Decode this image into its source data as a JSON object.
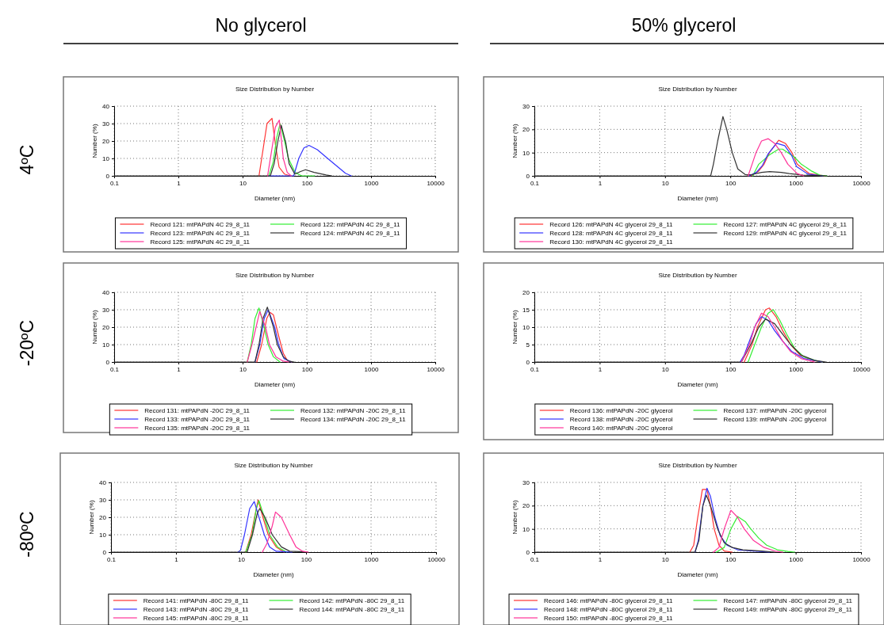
{
  "chart_data": [
    {
      "type": "line",
      "title": "Size Distribution by Number",
      "xlabel": "Diameter (nm)",
      "ylabel": "Number (%)",
      "annotations": [
        "No glycerol",
        "4ºC"
      ],
      "log": "x",
      "grid": true,
      "legend": "bottom",
      "line_style": "solid",
      "xlim": [
        0.1,
        10000
      ],
      "ylim": [
        0,
        40
      ],
      "xticks": [
        0.1,
        1,
        10,
        100,
        1000,
        10000
      ],
      "yticks": [
        0,
        10,
        20,
        30,
        40
      ],
      "series": [
        {
          "name": "Record 121: mtPAPdN 4C 29_8_11",
          "color": "#ff3333",
          "x": [
            18,
            24,
            28.7,
            32.4,
            37,
            45,
            55
          ],
          "values": [
            0,
            30,
            33,
            18,
            5,
            1,
            0
          ]
        },
        {
          "name": "Record 122: mtPAPdN 4C 29_8_11",
          "color": "#33ee33",
          "x": [
            25.6,
            30,
            34,
            38.4,
            45,
            51.7,
            65.5,
            83,
            132
          ],
          "values": [
            0,
            8,
            22,
            30,
            20,
            10,
            2,
            0,
            0
          ]
        },
        {
          "name": "Record 123: mtPAPdN 4C 29_8_11",
          "color": "#3333ff",
          "x": [
            25.6,
            62.5,
            75,
            90,
            108,
            146,
            211,
            307,
            400,
            492
          ],
          "values": [
            0,
            0,
            10,
            16,
            17.5,
            15,
            10,
            5,
            1.5,
            0
          ]
        },
        {
          "name": "Record 124: mtPAPdN 4C 29_8_11",
          "color": "#333333",
          "x": [
            0.1,
            27,
            31,
            35.5,
            40,
            47,
            53,
            65,
            80,
            95.5,
            130,
            200,
            245
          ],
          "values": [
            0,
            0,
            7,
            20,
            29,
            19,
            7,
            1,
            2.5,
            3.5,
            2,
            0.5,
            0
          ]
        },
        {
          "name": "Record 125: mtPAPdN 4C 29_8_11",
          "color": "#ff3399",
          "x": [
            24.5,
            32.4,
            37.3,
            43,
            49.5,
            57
          ],
          "values": [
            0,
            28,
            32,
            10,
            2,
            0
          ]
        }
      ]
    },
    {
      "type": "line",
      "title": "Size Distribution by Number",
      "xlabel": "Diameter (nm)",
      "ylabel": "Number (%)",
      "annotations": [
        "50% glycerol"
      ],
      "log": "x",
      "grid": true,
      "legend": "bottom",
      "line_style": "solid",
      "xlim": [
        0.1,
        10000
      ],
      "ylim": [
        0,
        30
      ],
      "xticks": [
        0.1,
        1,
        10,
        100,
        1000,
        10000
      ],
      "yticks": [
        0,
        10,
        20,
        30
      ],
      "series": [
        {
          "name": "Record 126: mtPAPdN 4C glycerol 29_8_11",
          "color": "#ff3333",
          "x": [
            205,
            270,
            328,
            396,
            549,
            695,
            876,
            1055,
            1609,
            2800
          ],
          "values": [
            0,
            2,
            5,
            10,
            15.3,
            14,
            10,
            5,
            1,
            0
          ]
        },
        {
          "name": "Record 127: mtPAPdN 4C glycerol 29_8_11",
          "color": "#33ee33",
          "x": [
            220,
            272,
            396,
            550,
            630,
            960,
            1220,
            1770,
            2330,
            3000
          ],
          "values": [
            0,
            5,
            9,
            11.5,
            11.5,
            8,
            5,
            2,
            0.3,
            0
          ]
        },
        {
          "name": "Record 128: mtPAPdN 4C glycerol 29_8_11",
          "color": "#3333ff",
          "x": [
            195,
            250,
            310,
            380,
            510,
            680,
            860,
            1030,
            1550,
            2600
          ],
          "values": [
            0,
            1.5,
            4.5,
            9.5,
            14,
            13,
            9,
            4,
            0.7,
            0
          ]
        },
        {
          "name": "Record 129: mtPAPdN 4C glycerol 29_8_11",
          "color": "#333333",
          "x": [
            0.1,
            50,
            55,
            64,
            77,
            88,
            107,
            130,
            170,
            210,
            300,
            400,
            600,
            800,
            1300,
            3000
          ],
          "values": [
            0,
            0,
            5,
            15,
            25.5,
            20,
            10,
            3,
            0.5,
            0.5,
            1.5,
            1.8,
            1.5,
            1,
            0.3,
            0
          ]
        },
        {
          "name": "Record 130: mtPAPdN 4C glycerol 29_8_11",
          "color": "#ff3399",
          "x": [
            187,
            215,
            247,
            300,
            378,
            476,
            600,
            760,
            1055,
            1330
          ],
          "values": [
            0,
            5,
            10,
            15,
            16,
            14,
            10,
            5,
            1,
            0
          ]
        }
      ]
    },
    {
      "type": "line",
      "title": "Size Distribution by Number",
      "xlabel": "Diameter (nm)",
      "ylabel": "Number (%)",
      "annotations": [
        "-20ºC"
      ],
      "log": "x",
      "grid": true,
      "legend": "bottom",
      "line_style": "solid",
      "xlim": [
        0.1,
        10000
      ],
      "ylim": [
        0,
        40
      ],
      "xticks": [
        0.1,
        1,
        10,
        100,
        1000,
        10000
      ],
      "yticks": [
        0,
        10,
        20,
        30,
        40
      ],
      "series": [
        {
          "name": "Record 131: mtPAPdN -20C 29_8_11",
          "color": "#ff3333",
          "x": [
            16.6,
            19.8,
            23.8,
            26.6,
            30.2,
            36.4,
            43,
            49.5,
            58
          ],
          "values": [
            0,
            10,
            25,
            28.5,
            27,
            15,
            5,
            1,
            0
          ]
        },
        {
          "name": "Record 132: mtPAPdN -20C 29_8_11",
          "color": "#33ee33",
          "x": [
            11.8,
            13.6,
            15.6,
            18,
            21.7,
            25,
            30.2,
            38.2
          ],
          "values": [
            0,
            10,
            25,
            31,
            20,
            10,
            3,
            0
          ]
        },
        {
          "name": "Record 133: mtPAPdN -20C 29_8_11",
          "color": "#3333ff",
          "x": [
            15.6,
            18.5,
            21.7,
            25,
            31.6,
            36.4,
            44,
            58
          ],
          "values": [
            0,
            10,
            25,
            30,
            20,
            10,
            2,
            0
          ]
        },
        {
          "name": "Record 134: mtPAPdN -20C 29_8_11",
          "color": "#333333",
          "x": [
            0.1,
            15.6,
            18,
            20.8,
            24.3,
            30.2,
            34.7,
            43,
            52,
            63.8
          ],
          "values": [
            0,
            0,
            10,
            25,
            31.5,
            20,
            10,
            3,
            0.5,
            0
          ]
        },
        {
          "name": "Record 135: mtPAPdN -20C 29_8_11",
          "color": "#ff3399",
          "x": [
            11.8,
            14,
            18.5,
            22.8,
            26.2,
            33,
            43,
            52
          ],
          "values": [
            0,
            10,
            29,
            20,
            10,
            3,
            0.5,
            0
          ]
        }
      ]
    },
    {
      "type": "line",
      "title": "Size Distribution by Number",
      "xlabel": "Diameter (nm)",
      "ylabel": "Number (%)",
      "log": "x",
      "grid": true,
      "legend": "bottom",
      "line_style": "solid",
      "xlim": [
        0.1,
        10000
      ],
      "ylim": [
        0,
        20
      ],
      "xticks": [
        0.1,
        1,
        10,
        100,
        1000,
        10000
      ],
      "yticks": [
        0,
        5,
        10,
        15,
        20
      ],
      "series": [
        {
          "name": "Record 136: mtPAPdN -20C glycerol",
          "color": "#ff3333",
          "x": [
            163,
            215,
            260,
            345,
            396,
            500,
            632,
            837,
            1160,
            1770,
            2570
          ],
          "values": [
            0,
            5,
            10,
            15,
            15.5,
            13,
            9,
            5,
            2,
            0.5,
            0
          ]
        },
        {
          "name": "Record 137: mtPAPdN -20C glycerol",
          "color": "#33ee33",
          "x": [
            187,
            236,
            299,
            378,
            455,
            570,
            727,
            960,
            1330,
            2100,
            2570
          ],
          "values": [
            0,
            5,
            10,
            14,
            15,
            12,
            8,
            4,
            1.5,
            0.3,
            0
          ]
        },
        {
          "name": "Record 138: mtPAPdN -20C glycerol",
          "color": "#3333ff",
          "x": [
            141,
            163,
            205,
            248,
            299,
            378,
            476,
            632,
            876,
            1330,
            2570
          ],
          "values": [
            0,
            2,
            7,
            11,
            13,
            12,
            9,
            6,
            3,
            1,
            0
          ]
        },
        {
          "name": "Record 139: mtPAPdN -20C glycerol",
          "color": "#333333",
          "x": [
            0.1,
            148,
            205,
            272,
            345,
            476,
            632,
            837,
            1210,
            1930,
            2900
          ],
          "values": [
            0,
            0,
            5,
            10,
            12.3,
            11,
            8,
            5,
            2,
            0.5,
            0
          ]
        },
        {
          "name": "Record 140: mtPAPdN -20C glycerol",
          "color": "#ff3399",
          "x": [
            148,
            196,
            236,
            299,
            378,
            476,
            632,
            837,
            1210,
            1930
          ],
          "values": [
            0,
            5,
            10,
            14,
            13,
            10,
            6,
            3,
            1,
            0
          ]
        }
      ]
    },
    {
      "type": "line",
      "title": "Size Distribution by Number",
      "xlabel": "Diameter (nm)",
      "ylabel": "Number (%)",
      "annotations": [
        "-80ºC"
      ],
      "log": "x",
      "grid": true,
      "legend": "bottom",
      "line_style": "solid",
      "xlim": [
        0.1,
        10000
      ],
      "ylim": [
        0,
        40
      ],
      "xticks": [
        0.1,
        1,
        10,
        100,
        1000,
        10000
      ],
      "yticks": [
        0,
        10,
        20,
        30,
        40
      ],
      "series": [
        {
          "name": "Record 141: mtPAPdN -80C 29_8_11",
          "color": "#ff3333",
          "x": [
            11.8,
            14.3,
            17.2,
            18.4,
            21.7,
            26.2,
            34.7,
            45.9
          ],
          "values": [
            0,
            10,
            25,
            30,
            20,
            10,
            3,
            0
          ]
        },
        {
          "name": "Record 142: mtPAPdN -80C 29_8_11",
          "color": "#33ee33",
          "x": [
            11.8,
            14.8,
            17.2,
            18.9,
            22.8,
            27.5,
            36.4,
            50.5
          ],
          "values": [
            0,
            10,
            25,
            29.5,
            20,
            10,
            3,
            0
          ]
        },
        {
          "name": "Record 143: mtPAPdN -80C 29_8_11",
          "color": "#3333ff",
          "x": [
            9,
            9.8,
            11.3,
            13.6,
            16,
            18.9,
            22.8,
            27.5,
            34.7,
            45,
            60.9
          ],
          "values": [
            0,
            1,
            10,
            25,
            29,
            20,
            10,
            3,
            0.5,
            0.3,
            0
          ]
        },
        {
          "name": "Record 144: mtPAPdN -80C 29_8_11",
          "color": "#333333",
          "x": [
            0.1,
            12.4,
            15,
            17.7,
            19.4,
            23.4,
            30.2,
            41.7,
            56,
            80,
            106
          ],
          "values": [
            0,
            0,
            10,
            22,
            25,
            20,
            10,
            3,
            0.5,
            0.3,
            0
          ]
        },
        {
          "name": "Record 145: mtPAPdN -80C 29_8_11",
          "color": "#ff3399",
          "x": [
            21.2,
            25.1,
            30.2,
            33.9,
            41.7,
            56,
            70,
            88.5,
            108
          ],
          "values": [
            0,
            5,
            15,
            23,
            20,
            10,
            3,
            0.5,
            0
          ]
        }
      ]
    },
    {
      "type": "line",
      "title": "Size Distribution by Number",
      "xlabel": "Diameter (nm)",
      "ylabel": "Number (%)",
      "log": "x",
      "grid": true,
      "legend": "bottom",
      "line_style": "solid",
      "xlim": [
        0.1,
        10000
      ],
      "ylim": [
        0,
        30
      ],
      "xticks": [
        0.1,
        1,
        10,
        100,
        1000,
        10000
      ],
      "yticks": [
        0,
        10,
        20,
        30
      ],
      "series": [
        {
          "name": "Record 146: mtPAPdN -80C glycerol 29_8_11",
          "color": "#ff3333",
          "x": [
            24,
            27.5,
            31.7,
            37.3,
            43.8,
            49.6,
            56.5,
            66.9,
            80.6,
            107
          ],
          "values": [
            0,
            3,
            15,
            27,
            27,
            20,
            10,
            3,
            0.5,
            0
          ]
        },
        {
          "name": "Record 147: mtPAPdN -80C glycerol 29_8_11",
          "color": "#33ee33",
          "x": [
            60.9,
            80.6,
            102,
            129,
            171,
            205,
            272,
            360,
            525,
            760,
            960
          ],
          "values": [
            0,
            2,
            10,
            15.3,
            13,
            10,
            6,
            3,
            1,
            0.3,
            0
          ]
        },
        {
          "name": "Record 148: mtPAPdN -80C glycerol 29_8_11",
          "color": "#3333ff",
          "x": [
            28.8,
            32.3,
            38,
            43.8,
            49.6,
            58,
            70,
            88.5,
            129,
            226,
            396
          ],
          "values": [
            0,
            5,
            20,
            27.5,
            24,
            15,
            7,
            3,
            1,
            0.5,
            0
          ]
        },
        {
          "name": "Record 149: mtPAPdN -80C glycerol 29_8_11",
          "color": "#333333",
          "x": [
            0.1,
            28.8,
            33,
            38,
            43,
            49.6,
            63.8,
            80.6,
            107,
            155,
            299,
            476
          ],
          "values": [
            0,
            0,
            5,
            20,
            24.5,
            20,
            10,
            4,
            2,
            1,
            0.5,
            0
          ]
        },
        {
          "name": "Record 150: mtPAPdN -80C glycerol 29_8_11",
          "color": "#ff3399",
          "x": [
            55,
            66.9,
            80.6,
            102,
            129,
            163,
            226,
            328,
            476,
            632
          ],
          "values": [
            0,
            2,
            10,
            18,
            15,
            10,
            5,
            2,
            0.5,
            0
          ]
        }
      ]
    }
  ]
}
